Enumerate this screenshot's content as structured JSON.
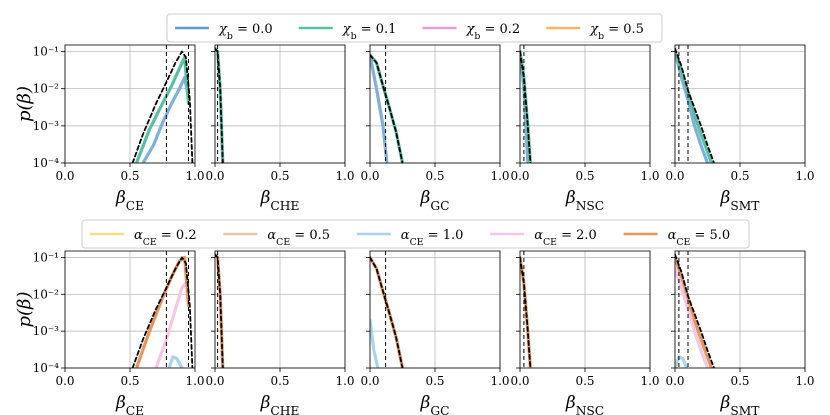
{
  "figure": {
    "ylabel": "p(β)"
  },
  "chart_data": [
    {
      "type": "line",
      "row": "top",
      "legend": {
        "placement": "top-center",
        "entries": [
          {
            "label": "χb = 0.0",
            "color": "#5b9bd5"
          },
          {
            "label": "χb = 0.1",
            "color": "#55c2a4"
          },
          {
            "label": "χb = 0.2",
            "color": "#dda0dd"
          },
          {
            "label": "χb = 0.5",
            "color": "#f0b860"
          }
        ]
      },
      "panels": [
        {
          "xlabel": "βCE",
          "xlim": [
            0,
            1
          ],
          "ylim": [
            0.0001,
            0.15
          ],
          "yscale": "log",
          "vlines": [
            0.78,
            0.95
          ],
          "series": [
            {
              "name": "χb = 0.0",
              "color": "#7fb0dc",
              "x": [
                0.6,
                0.68,
                0.75,
                0.82,
                0.88,
                0.92,
                0.95
              ],
              "y": [
                0.0001,
                0.0003,
                0.0012,
                0.004,
                0.01,
                0.02,
                0.006
              ]
            },
            {
              "name": "χb = 0.1",
              "color": "#55c2a4",
              "x": [
                0.55,
                0.65,
                0.75,
                0.82,
                0.88,
                0.92,
                0.95
              ],
              "y": [
                0.0001,
                0.0008,
                0.004,
                0.012,
                0.035,
                0.07,
                0.004
              ]
            },
            {
              "name": "reference",
              "color": "#000000",
              "dashed": true,
              "x": [
                0.52,
                0.6,
                0.7,
                0.78,
                0.85,
                0.9,
                0.93,
                0.96,
                0.98
              ],
              "y": [
                0.0001,
                0.0006,
                0.004,
                0.015,
                0.05,
                0.1,
                0.07,
                0.005,
                0.0001
              ]
            }
          ]
        },
        {
          "xlabel": "βCHE",
          "xlim": [
            0,
            1
          ],
          "ylim": [
            0.0001,
            0.15
          ],
          "yscale": "log",
          "vlines": [
            0.02
          ],
          "series": [
            {
              "name": "χb = 0.1",
              "color": "#55c2a4",
              "x": [
                0.0,
                0.02,
                0.04,
                0.06
              ],
              "y": [
                0.12,
                0.1,
                0.01,
                0.0001
              ]
            },
            {
              "name": "reference",
              "color": "#000000",
              "dashed": true,
              "x": [
                0.0,
                0.02,
                0.04,
                0.06
              ],
              "y": [
                0.12,
                0.1,
                0.01,
                0.0001
              ]
            }
          ]
        },
        {
          "xlabel": "βGC",
          "xlim": [
            0,
            1
          ],
          "ylim": [
            0.0001,
            0.15
          ],
          "yscale": "log",
          "vlines": [
            0.12
          ],
          "series": [
            {
              "name": "χb = 0.0",
              "color": "#7fb0dc",
              "x": [
                0.0,
                0.05,
                0.1,
                0.13
              ],
              "y": [
                0.08,
                0.01,
                0.001,
                0.0001
              ]
            },
            {
              "name": "χb = 0.1",
              "color": "#55c2a4",
              "x": [
                0.0,
                0.05,
                0.1,
                0.15,
                0.2,
                0.25
              ],
              "y": [
                0.08,
                0.05,
                0.012,
                0.003,
                0.0007,
                0.0001
              ]
            },
            {
              "name": "reference",
              "color": "#000000",
              "dashed": true,
              "x": [
                0.0,
                0.05,
                0.1,
                0.15,
                0.2,
                0.25
              ],
              "y": [
                0.08,
                0.05,
                0.012,
                0.003,
                0.0007,
                0.0001
              ]
            }
          ]
        },
        {
          "xlabel": "βNSC",
          "xlim": [
            0,
            1
          ],
          "ylim": [
            0.0001,
            0.15
          ],
          "yscale": "log",
          "vlines": [
            0.03
          ],
          "series": [
            {
              "name": "χb = 0.0",
              "color": "#7fb0dc",
              "x": [
                0.0,
                0.03,
                0.06
              ],
              "y": [
                0.1,
                0.01,
                0.0001
              ]
            },
            {
              "name": "χb = 0.1",
              "color": "#55c2a4",
              "x": [
                0.0,
                0.03,
                0.06,
                0.08
              ],
              "y": [
                0.1,
                0.02,
                0.001,
                0.0001
              ]
            },
            {
              "name": "reference",
              "color": "#000000",
              "dashed": true,
              "x": [
                0.0,
                0.03,
                0.06,
                0.08
              ],
              "y": [
                0.1,
                0.02,
                0.001,
                0.0001
              ]
            }
          ]
        },
        {
          "xlabel": "βSMT",
          "xlim": [
            0,
            1
          ],
          "ylim": [
            0.0001,
            0.15
          ],
          "yscale": "log",
          "vlines": [
            0.03,
            0.1
          ],
          "series": [
            {
              "name": "χb = 0.0",
              "color": "#7fb0dc",
              "x": [
                0.0,
                0.05,
                0.1,
                0.15,
                0.2,
                0.25
              ],
              "y": [
                0.1,
                0.02,
                0.005,
                0.001,
                0.0003,
                0.0001
              ]
            },
            {
              "name": "χb = 0.1",
              "color": "#55c2a4",
              "x": [
                0.0,
                0.05,
                0.1,
                0.15,
                0.2,
                0.25,
                0.28
              ],
              "y": [
                0.1,
                0.03,
                0.008,
                0.002,
                0.0006,
                0.0002,
                0.0001
              ]
            },
            {
              "name": "reference",
              "color": "#000000",
              "dashed": true,
              "x": [
                0.0,
                0.05,
                0.1,
                0.15,
                0.2,
                0.25,
                0.3
              ],
              "y": [
                0.12,
                0.04,
                0.009,
                0.003,
                0.001,
                0.0003,
                0.0001
              ]
            }
          ]
        }
      ]
    },
    {
      "type": "line",
      "row": "bottom",
      "legend": {
        "placement": "top-center",
        "entries": [
          {
            "label": "αCE = 0.2",
            "color": "#f5e08a"
          },
          {
            "label": "αCE = 0.5",
            "color": "#e0c8a8"
          },
          {
            "label": "αCE = 1.0",
            "color": "#a8d4ec"
          },
          {
            "label": "αCE = 2.0",
            "color": "#f5c6e8"
          },
          {
            "label": "αCE = 5.0",
            "color": "#e8955a"
          }
        ]
      },
      "panels": [
        {
          "xlabel": "βCE",
          "xlim": [
            0,
            1
          ],
          "ylim": [
            0.0001,
            0.15
          ],
          "yscale": "log",
          "vlines": [
            0.78,
            0.95
          ],
          "series": [
            {
              "name": "αCE = 1.0",
              "color": "#a8d4ec",
              "x": [
                0.8,
                0.83,
                0.86,
                0.9
              ],
              "y": [
                0.0001,
                0.0002,
                0.00018,
                0.0001
              ]
            },
            {
              "name": "αCE = 2.0",
              "color": "#f5c6e8",
              "x": [
                0.7,
                0.78,
                0.85,
                0.9,
                0.93
              ],
              "y": [
                0.0001,
                0.0006,
                0.004,
                0.015,
                0.02
              ]
            },
            {
              "name": "αCE = 5.0",
              "color": "#e8955a",
              "x": [
                0.55,
                0.65,
                0.75,
                0.82,
                0.88,
                0.92,
                0.95
              ],
              "y": [
                0.0001,
                0.001,
                0.008,
                0.03,
                0.08,
                0.1,
                0.005
              ]
            },
            {
              "name": "reference",
              "color": "#000000",
              "dashed": true,
              "x": [
                0.52,
                0.6,
                0.7,
                0.78,
                0.85,
                0.9,
                0.93,
                0.96,
                0.98
              ],
              "y": [
                0.0001,
                0.0006,
                0.004,
                0.015,
                0.05,
                0.1,
                0.07,
                0.005,
                0.0001
              ]
            }
          ]
        },
        {
          "xlabel": "βCHE",
          "xlim": [
            0,
            1
          ],
          "ylim": [
            0.0001,
            0.15
          ],
          "yscale": "log",
          "vlines": [
            0.02
          ],
          "series": [
            {
              "name": "αCE = 5.0",
              "color": "#e8955a",
              "x": [
                0.0,
                0.02,
                0.04,
                0.06
              ],
              "y": [
                0.12,
                0.1,
                0.01,
                0.0001
              ]
            },
            {
              "name": "reference",
              "color": "#000000",
              "dashed": true,
              "x": [
                0.0,
                0.02,
                0.04,
                0.06
              ],
              "y": [
                0.12,
                0.1,
                0.01,
                0.0001
              ]
            }
          ]
        },
        {
          "xlabel": "βGC",
          "xlim": [
            0,
            1
          ],
          "ylim": [
            0.0001,
            0.15
          ],
          "yscale": "log",
          "vlines": [
            0.12
          ],
          "series": [
            {
              "name": "αCE = 1.0",
              "color": "#a8d4ec",
              "x": [
                0.0,
                0.03,
                0.06
              ],
              "y": [
                0.002,
                0.0003,
                0.0001
              ]
            },
            {
              "name": "αCE = 5.0",
              "color": "#e8955a",
              "x": [
                0.0,
                0.05,
                0.1,
                0.15,
                0.2,
                0.25
              ],
              "y": [
                0.1,
                0.05,
                0.012,
                0.003,
                0.0007,
                0.0001
              ]
            },
            {
              "name": "reference",
              "color": "#000000",
              "dashed": true,
              "x": [
                0.0,
                0.05,
                0.1,
                0.15,
                0.2,
                0.25
              ],
              "y": [
                0.1,
                0.05,
                0.012,
                0.003,
                0.0007,
                0.0001
              ]
            }
          ]
        },
        {
          "xlabel": "βNSC",
          "xlim": [
            0,
            1
          ],
          "ylim": [
            0.0001,
            0.15
          ],
          "yscale": "log",
          "vlines": [
            0.03
          ],
          "series": [
            {
              "name": "αCE = 5.0",
              "color": "#e8955a",
              "x": [
                0.0,
                0.03,
                0.06,
                0.08
              ],
              "y": [
                0.1,
                0.02,
                0.001,
                0.0001
              ]
            },
            {
              "name": "reference",
              "color": "#000000",
              "dashed": true,
              "x": [
                0.0,
                0.03,
                0.06,
                0.08
              ],
              "y": [
                0.1,
                0.02,
                0.001,
                0.0001
              ]
            }
          ]
        },
        {
          "xlabel": "βSMT",
          "xlim": [
            0,
            1
          ],
          "ylim": [
            0.0001,
            0.15
          ],
          "yscale": "log",
          "vlines": [
            0.03,
            0.1
          ],
          "series": [
            {
              "name": "αCE = 1.0",
              "color": "#a8d4ec",
              "x": [
                0.0,
                0.03,
                0.06,
                0.09
              ],
              "y": [
                0.0001,
                0.0002,
                0.00018,
                0.0001
              ]
            },
            {
              "name": "αCE = 2.0",
              "color": "#f5c6e8",
              "x": [
                0.0,
                0.05,
                0.1,
                0.15,
                0.2,
                0.25
              ],
              "y": [
                0.05,
                0.015,
                0.004,
                0.001,
                0.0003,
                0.0001
              ]
            },
            {
              "name": "αCE = 5.0",
              "color": "#e8955a",
              "x": [
                0.0,
                0.05,
                0.1,
                0.15,
                0.2,
                0.25,
                0.28
              ],
              "y": [
                0.1,
                0.03,
                0.008,
                0.002,
                0.0006,
                0.0002,
                0.0001
              ]
            },
            {
              "name": "reference",
              "color": "#000000",
              "dashed": true,
              "x": [
                0.0,
                0.05,
                0.1,
                0.15,
                0.2,
                0.25,
                0.3
              ],
              "y": [
                0.12,
                0.04,
                0.009,
                0.003,
                0.001,
                0.0003,
                0.0001
              ]
            }
          ]
        }
      ]
    }
  ],
  "tick_labels": {
    "x": [
      "0.0",
      "0.5",
      "1.0"
    ],
    "y": [
      "10⁻¹",
      "10⁻²",
      "10⁻³",
      "10⁻⁴"
    ]
  }
}
